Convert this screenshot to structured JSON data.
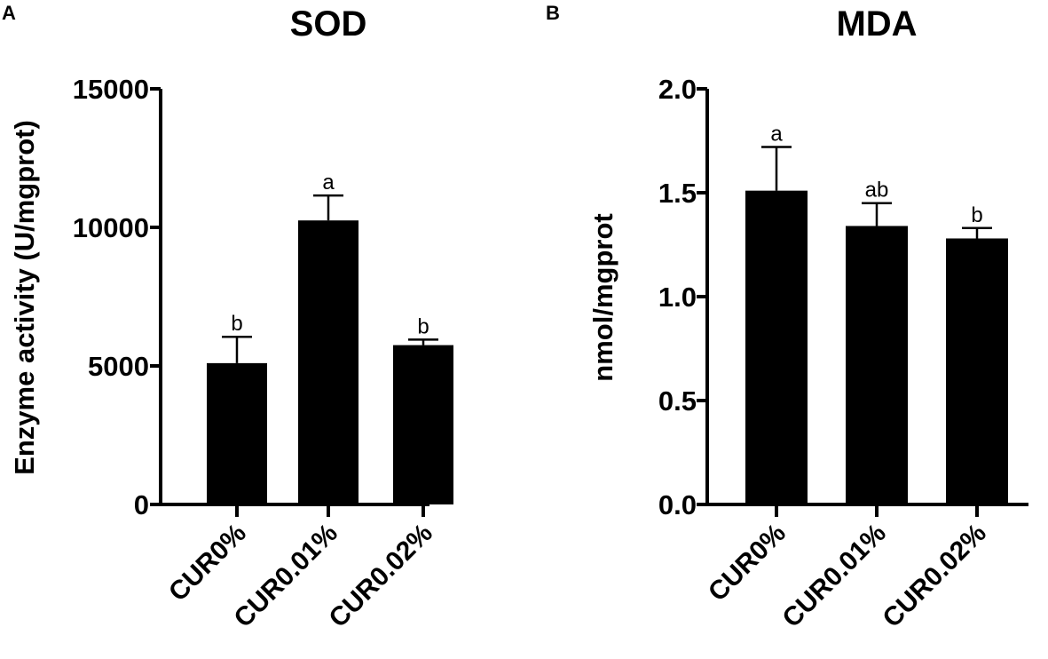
{
  "chart_data": [
    {
      "panel": "A",
      "type": "bar",
      "title": "SOD",
      "xlabel": "",
      "ylabel": "Enzyme activity (U/mgprot)",
      "ylim": [
        0,
        15000
      ],
      "yticks": [
        "0",
        "5000",
        "10000",
        "15000"
      ],
      "ytick_values": [
        0,
        5000,
        10000,
        15000
      ],
      "categories": [
        "CUR0%",
        "CUR0.01%",
        "CUR0.02%"
      ],
      "values": [
        5100,
        10250,
        5750
      ],
      "errors": [
        950,
        900,
        200
      ],
      "significance": [
        "b",
        "a",
        "b"
      ],
      "bar_color": "#000000"
    },
    {
      "panel": "B",
      "type": "bar",
      "title": "MDA",
      "xlabel": "",
      "ylabel": "nmol/mgprot",
      "ylim": [
        0,
        2.0
      ],
      "yticks": [
        "0.0",
        "0.5",
        "1.0",
        "1.5",
        "2.0"
      ],
      "ytick_values": [
        0,
        0.5,
        1.0,
        1.5,
        2.0
      ],
      "categories": [
        "CUR0%",
        "CUR0.01%",
        "CUR0.02%"
      ],
      "values": [
        1.51,
        1.34,
        1.28
      ],
      "errors": [
        0.21,
        0.11,
        0.05
      ],
      "significance": [
        "a",
        "ab",
        "b"
      ],
      "bar_color": "#000000"
    }
  ]
}
